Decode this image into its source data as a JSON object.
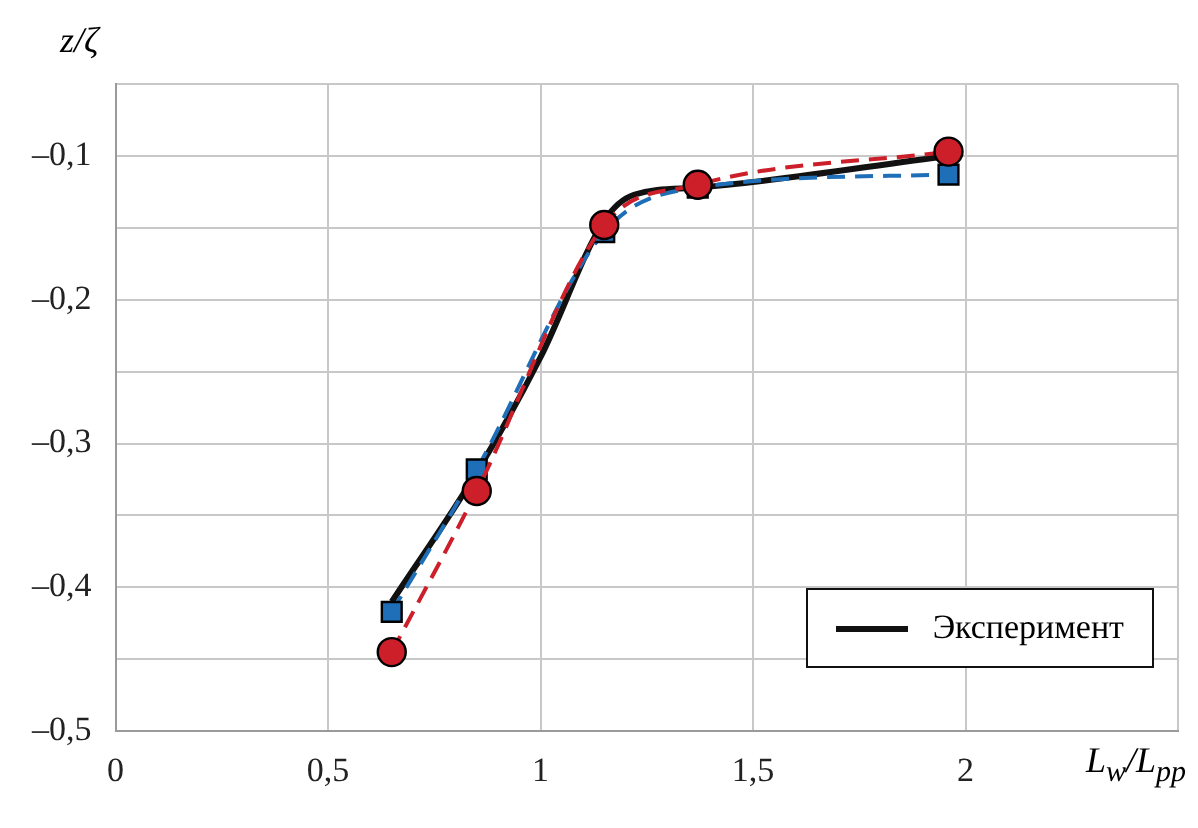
{
  "chart_data": {
    "type": "line",
    "xlabel": "L$_{w}$/L$_{pp}$",
    "ylabel": "z/ζ",
    "xlim": [
      0,
      2.5
    ],
    "ylim": [
      -0.5,
      -0.05
    ],
    "xticks": [
      0,
      {
        "value": 0.5,
        "label": "0,5"
      },
      1,
      {
        "value": 1.5,
        "label": "1,5"
      },
      2,
      {
        "value": 2.5,
        "label": null
      }
    ],
    "yticks": [
      {
        "value": -0.5,
        "label": "–0,5"
      },
      {
        "value": -0.45,
        "label": null
      },
      {
        "value": -0.4,
        "label": "–0,4"
      },
      {
        "value": -0.35,
        "label": null
      },
      {
        "value": -0.3,
        "label": "–0,3"
      },
      {
        "value": -0.25,
        "label": null
      },
      {
        "value": -0.2,
        "label": "–0,2"
      },
      {
        "value": -0.15,
        "label": null
      },
      {
        "value": -0.1,
        "label": "–0,1"
      },
      {
        "value": -0.05,
        "label": null
      }
    ],
    "grid": true,
    "legend": "bottom right",
    "series": [
      {
        "name": "Эксперимент",
        "color": "#111111",
        "x": [
          0.65,
          0.85,
          1.0,
          1.15,
          1.22,
          1.37,
          1.96
        ],
        "values": [
          -0.41,
          -0.32,
          -0.24,
          -0.145,
          -0.127,
          -0.122,
          -0.1
        ],
        "marker": "none",
        "line_style": "solid"
      },
      {
        "color": "#1f6fb8",
        "x": [
          0.65,
          0.85,
          1.15,
          1.37,
          1.96
        ],
        "values": [
          -0.417,
          -0.318,
          -0.153,
          -0.122,
          -0.113
        ],
        "marker": "square",
        "line_style": "dashed"
      },
      {
        "color": "#cc1f2a",
        "x": [
          0.65,
          0.85,
          1.15,
          1.37,
          1.96
        ],
        "values": [
          -0.445,
          -0.333,
          -0.148,
          -0.12,
          -0.097
        ],
        "marker": "circle",
        "line_style": "dashed"
      }
    ]
  }
}
